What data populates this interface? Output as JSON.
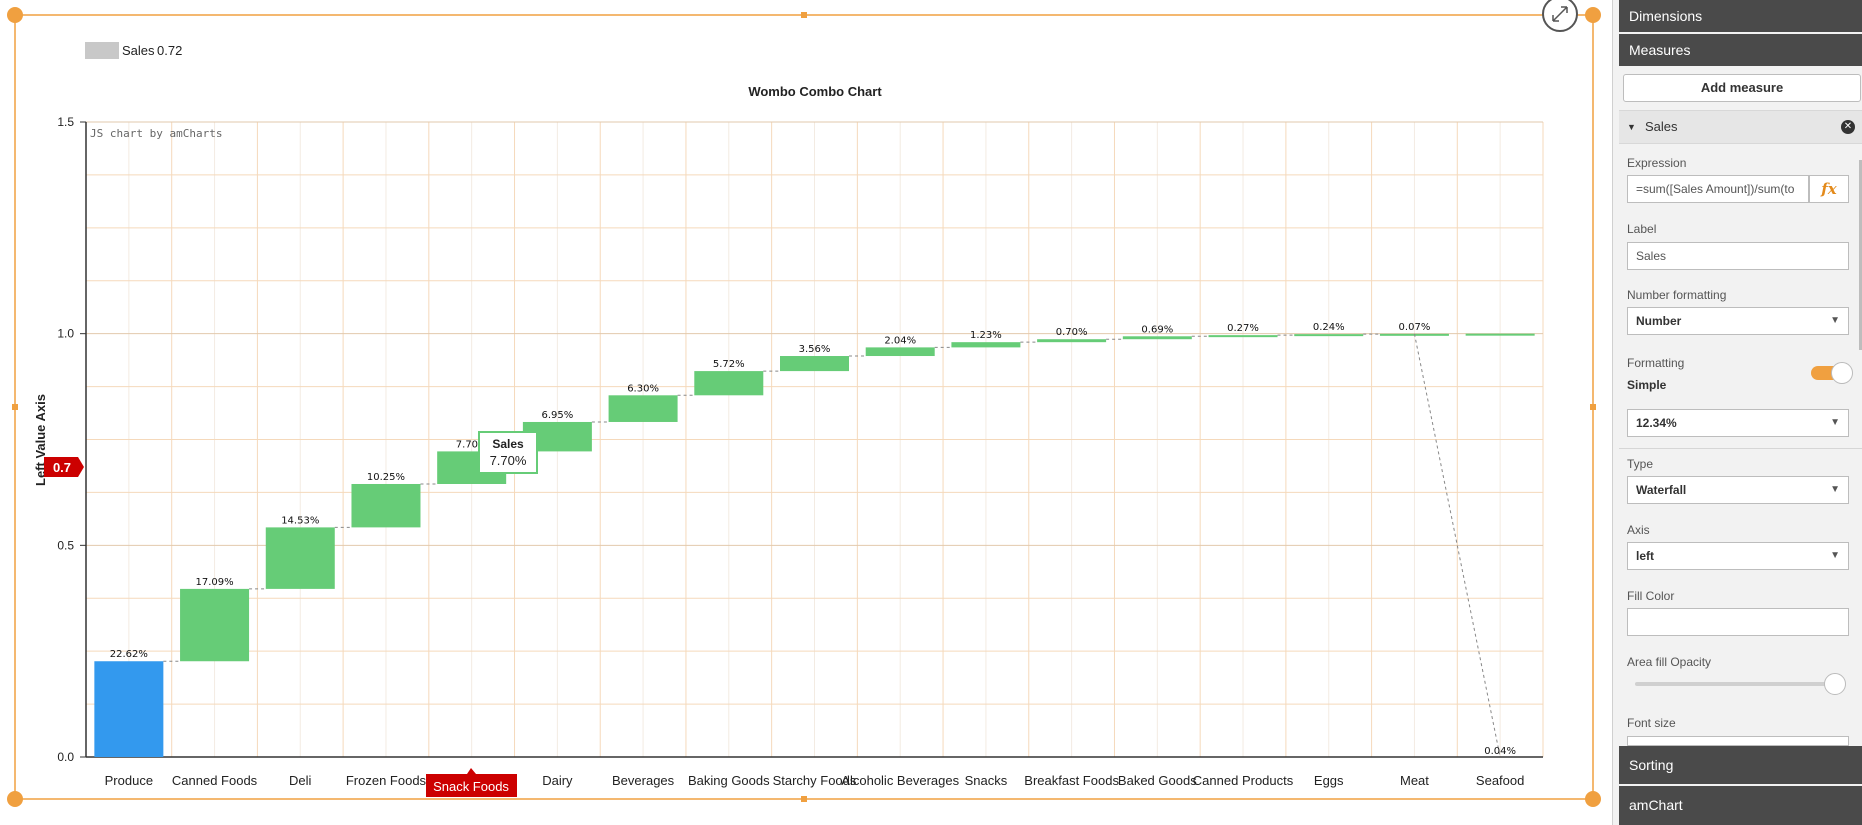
{
  "chart_data": {
    "type": "bar",
    "subtype": "waterfall",
    "title": "Wombo Combo Chart",
    "ylabel": "Left Value Axis",
    "watermark": "JS chart by amCharts",
    "ylim": [
      0,
      1.5
    ],
    "yticks": [
      "0.0",
      "0.5",
      "1.0",
      "1.5"
    ],
    "yticks_values": [
      0,
      0.5,
      1.0,
      1.5
    ],
    "legend": {
      "name": "Sales",
      "value": "0.72",
      "placement": "top-left"
    },
    "categories": [
      "Produce",
      "Canned Foods",
      "Deli",
      "Frozen Foods",
      "Snack Foods",
      "Dairy",
      "Beverages",
      "Baking Goods",
      "Starchy Foods",
      "Alcoholic Beverages",
      "Snacks",
      "Breakfast Foods",
      "Baked Goods",
      "Canned Products",
      "Eggs",
      "Meat",
      "Seafood"
    ],
    "series": [
      {
        "values": [
          0.2262,
          0.1709,
          0.1453,
          0.1025,
          0.077,
          0.0695,
          0.063,
          0.0572,
          0.0356,
          0.0204,
          0.0123,
          0.007,
          0.0069,
          0.0027,
          0.0024,
          0.0007,
          0.0004
        ],
        "labels": [
          "22.62%",
          "17.09%",
          "14.53%",
          "10.25%",
          "7.70%",
          "6.95%",
          "6.30%",
          "5.72%",
          "3.56%",
          "2.04%",
          "1.23%",
          "0.70%",
          "0.69%",
          "0.27%",
          "0.24%",
          "0.07%",
          "0.04%"
        ]
      }
    ],
    "cursor": {
      "category": "Snack Foods",
      "value": "0.7"
    },
    "balloon": {
      "series": "Sales",
      "value": "7.70%"
    },
    "colors": {
      "first_bar": "#3399ee",
      "bars": "#66cc77",
      "cursor": "#cc0000",
      "frame": "#f0a040",
      "grid": "#f5d9bb"
    }
  },
  "panel": {
    "dimensions_label": "Dimensions",
    "measures_label": "Measures",
    "add_measure_label": "Add measure",
    "measure_name": "Sales",
    "expression_label": "Expression",
    "expression_value": "=sum([Sales Amount])/sum(to",
    "label_label": "Label",
    "label_value": "Sales",
    "number_formatting_label": "Number formatting",
    "number_formatting_value": "Number",
    "formatting_label": "Formatting",
    "formatting_mode": "Simple",
    "format_pattern": "12.34%",
    "type_label": "Type",
    "type_value": "Waterfall",
    "axis_label": "Axis",
    "axis_value": "left",
    "fill_color_label": "Fill Color",
    "fill_color_value": "",
    "area_opacity_label": "Area fill Opacity",
    "area_opacity_value": 1.0,
    "font_size_label": "Font size",
    "sorting_label": "Sorting",
    "amchart_label": "amChart",
    "fx_symbol": "fx"
  }
}
